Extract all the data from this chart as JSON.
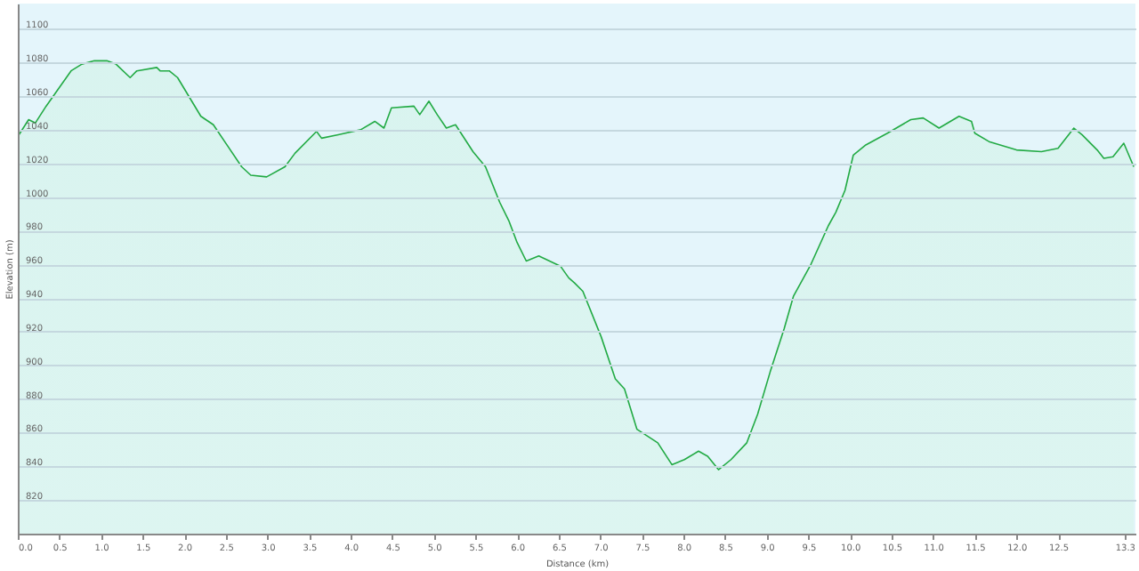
{
  "chart_data": {
    "type": "area",
    "xlabel": "Distance (km)",
    "ylabel": "Elevation (m)",
    "xlim": [
      0,
      13.43
    ],
    "ylim": [
      800,
      1115
    ],
    "xticks": [
      {
        "value": 0,
        "label": "0.0"
      },
      0.5,
      {
        "value": 1,
        "label": "1.0"
      },
      1.5,
      {
        "value": 2,
        "label": "2.0"
      },
      2.5,
      {
        "value": 3,
        "label": "3.0"
      },
      3.5,
      {
        "value": 4,
        "label": "4.0"
      },
      4.5,
      {
        "value": 5,
        "label": "5.0"
      },
      5.5,
      {
        "value": 6,
        "label": "6.0"
      },
      6.5,
      {
        "value": 7,
        "label": "7.0"
      },
      7.5,
      {
        "value": 8,
        "label": "8.0"
      },
      8.5,
      {
        "value": 9,
        "label": "9.0"
      },
      9.5,
      {
        "value": 10,
        "label": "10.0"
      },
      10.5,
      {
        "value": 11,
        "label": "11.0"
      },
      11.5,
      {
        "value": 12,
        "label": "12.0"
      },
      12.5,
      {
        "value": 13.3,
        "label": "13.3"
      }
    ],
    "yticks": [
      820,
      840,
      860,
      880,
      900,
      920,
      940,
      960,
      980,
      1000,
      1020,
      1040,
      1060,
      1080,
      1100
    ],
    "grid": "y",
    "legend": false,
    "series": [
      {
        "color": "#22aa44",
        "x": [
          0,
          0.13,
          0.21,
          0.34,
          0.64,
          0.77,
          0.92,
          1.07,
          1.18,
          1.35,
          1.43,
          1.67,
          1.71,
          1.82,
          1.92,
          2.2,
          2.35,
          2.69,
          2.8,
          2.99,
          3.21,
          3.33,
          3.59,
          3.65,
          3.85,
          4.12,
          4.29,
          4.4,
          4.49,
          4.76,
          4.83,
          4.94,
          5.04,
          5.15,
          5.26,
          5.47,
          5.62,
          5.79,
          5.9,
          6.0,
          6.11,
          6.26,
          6.52,
          6.62,
          6.69,
          6.79,
          7.01,
          7.18,
          7.29,
          7.44,
          7.69,
          7.86,
          8.01,
          8.18,
          8.29,
          8.42,
          8.57,
          8.76,
          8.89,
          9.04,
          9.21,
          9.32,
          9.53,
          9.74,
          9.83,
          9.94,
          10.04,
          10.19,
          10.45,
          10.73,
          10.88,
          11.07,
          11.31,
          11.46,
          11.5,
          11.67,
          12.0,
          12.3,
          12.5,
          12.69,
          12.79,
          12.97,
          13.05,
          13.16,
          13.29,
          13.41
        ],
        "values": [
          1036,
          1046,
          1044,
          1054,
          1075,
          1079,
          1081,
          1081,
          1079,
          1071,
          1075,
          1077,
          1075,
          1075,
          1071,
          1048,
          1043,
          1018,
          1013,
          1012,
          1018,
          1026,
          1039,
          1035,
          1037,
          1040,
          1045,
          1041,
          1053,
          1054,
          1049,
          1057,
          1049,
          1041,
          1043,
          1027,
          1018,
          997,
          986,
          973,
          962,
          965,
          959,
          952,
          949,
          944,
          917,
          892,
          886,
          862,
          854,
          841,
          844,
          849,
          846,
          838,
          844,
          854,
          871,
          896,
          922,
          941,
          960,
          983,
          991,
          1004,
          1025,
          1031,
          1038,
          1046,
          1047,
          1041,
          1048,
          1045,
          1038,
          1033,
          1028,
          1027,
          1029,
          1041,
          1037,
          1028,
          1023,
          1024,
          1032,
          1018
        ]
      }
    ]
  }
}
